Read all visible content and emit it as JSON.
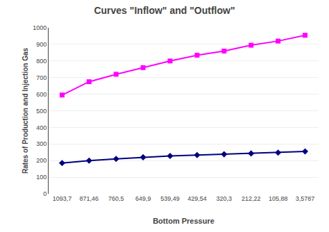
{
  "chart_data": {
    "type": "line",
    "title": "Curves \"Inflow\" and \"Outflow\"",
    "xlabel": "Bottom Pressure",
    "ylabel": "Rates of Production and Injection Gas",
    "categories": [
      "1093,7",
      "871,46",
      "760,5",
      "649,9",
      "539,49",
      "429,54",
      "320,3",
      "212,22",
      "105,88",
      "3,5787"
    ],
    "series": [
      {
        "color": "#FF00FF",
        "marker": "square",
        "values": [
          595,
          675,
          720,
          760,
          800,
          835,
          860,
          895,
          920,
          955
        ]
      },
      {
        "color": "#000080",
        "marker": "diamond",
        "values": [
          185,
          200,
          210,
          220,
          228,
          233,
          238,
          243,
          248,
          255
        ]
      }
    ],
    "ylim": [
      0,
      1000
    ],
    "yticks": [
      0,
      100,
      200,
      300,
      400,
      500,
      600,
      700,
      800,
      900,
      1000
    ],
    "grid": true
  }
}
